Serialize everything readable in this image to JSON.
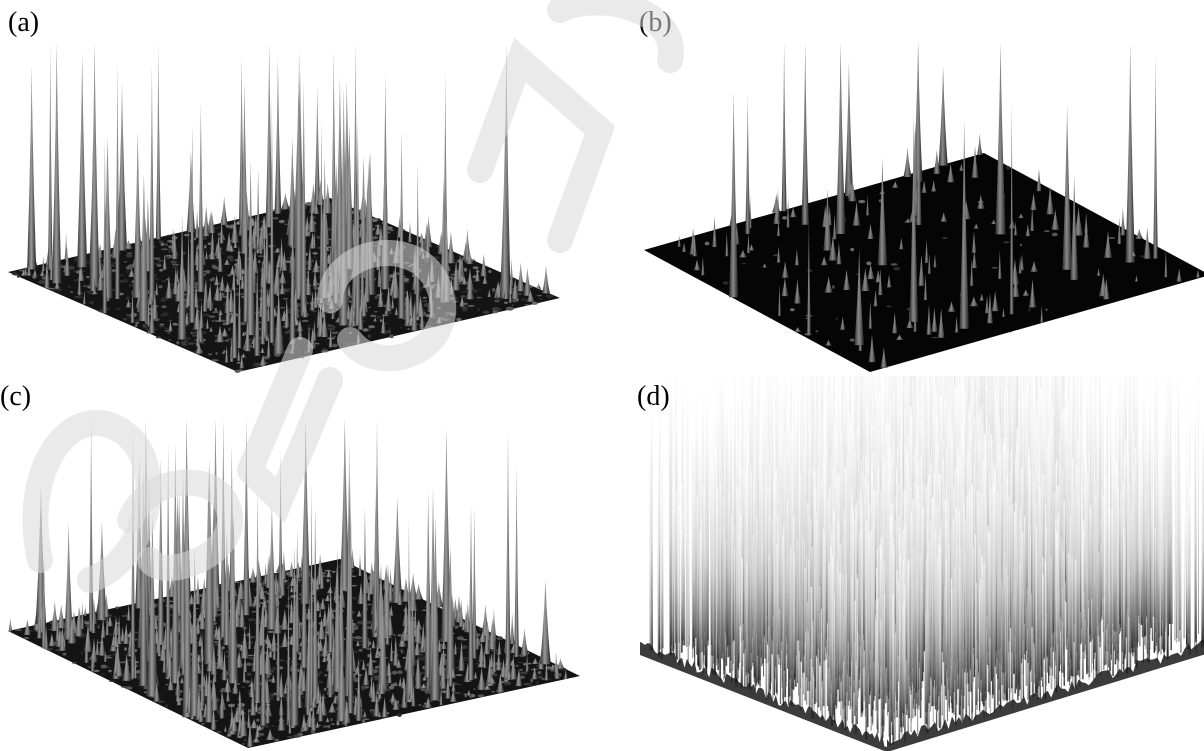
{
  "figure": {
    "panels": [
      {
        "label": "(a)",
        "style": "dark-sparse-dense",
        "seed": 11,
        "tall": 70,
        "bumps": 420
      },
      {
        "label": "(b)",
        "style": "black-sparse",
        "seed": 23,
        "tall": 22,
        "bumps": 140
      },
      {
        "label": "(c)",
        "style": "dark-dense",
        "seed": 37,
        "tall": 85,
        "bumps": 620
      },
      {
        "label": "(d)",
        "style": "bright-forest",
        "seed": 53,
        "tall": 0,
        "bumps": 0
      }
    ],
    "watermark": {
      "color": "#d9d9d9"
    }
  }
}
